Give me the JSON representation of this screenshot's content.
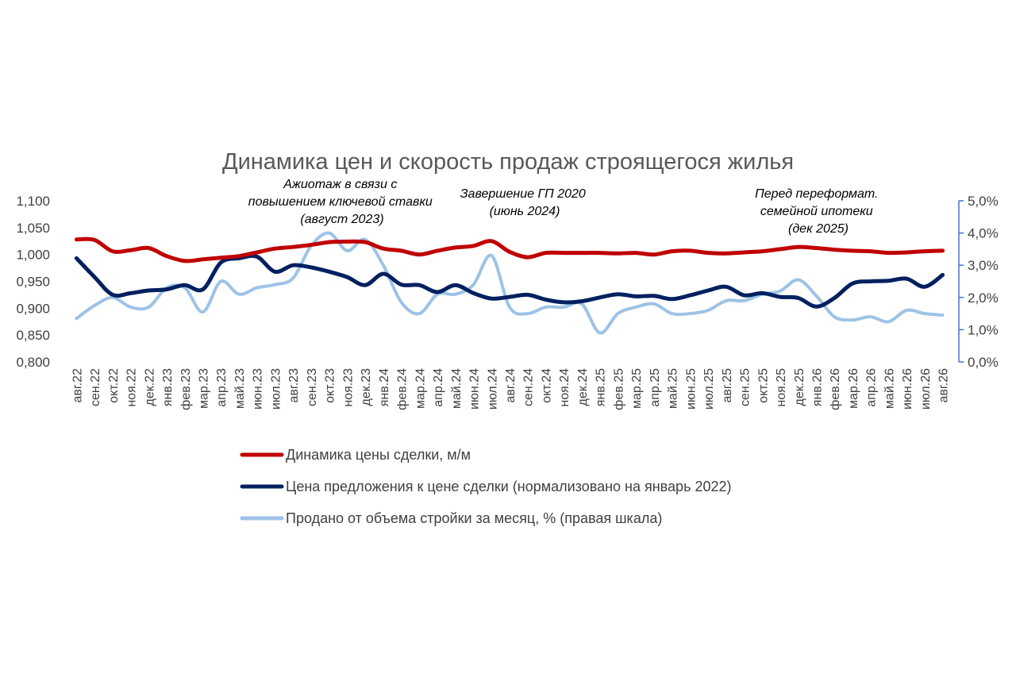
{
  "chart_data": {
    "type": "line",
    "title": "Динамика цен и скорость продаж строящегося жилья",
    "categories": [
      "авг.22",
      "сен.22",
      "окт.22",
      "ноя.22",
      "дек.22",
      "янв.23",
      "фев.23",
      "мар.23",
      "апр.23",
      "май.23",
      "июн.23",
      "июл.23",
      "авг.23",
      "сен.23",
      "окт.23",
      "ноя.23",
      "дек.23",
      "янв.24",
      "фев.24",
      "мар.24",
      "апр.24",
      "май.24",
      "июн.24",
      "июл.24",
      "авг.24",
      "сен.24",
      "окт.24",
      "ноя.24",
      "дек.24",
      "янв.25",
      "фев.25",
      "мар.25",
      "апр.25",
      "май.25",
      "июн.25",
      "июл.25",
      "авг.25",
      "сен.25",
      "окт.25",
      "ноя.25",
      "дек.25",
      "янв.26",
      "фев.26",
      "мар.26",
      "апр.26",
      "май.26",
      "июн.26",
      "июл.26",
      "авг.26"
    ],
    "y_left": {
      "ylim": [
        0.8,
        1.1
      ],
      "ticks": [
        "0,800",
        "0,850",
        "0,900",
        "0,950",
        "1,000",
        "1,050",
        "1,100"
      ]
    },
    "y_right": {
      "ylim": [
        0.0,
        5.0
      ],
      "ticks": [
        "0,0%",
        "1,0%",
        "2,0%",
        "3,0%",
        "4,0%",
        "5,0%"
      ],
      "axis_color": "#4472c4"
    },
    "series": [
      {
        "name": "Динамика цены сделки, м/м",
        "axis": "left",
        "color": "#c00000",
        "values": [
          1.028,
          1.027,
          1.006,
          1.008,
          1.012,
          0.997,
          0.988,
          0.991,
          0.994,
          0.997,
          1.004,
          1.011,
          1.014,
          1.018,
          1.023,
          1.024,
          1.023,
          1.011,
          1.007,
          1.0,
          1.007,
          1.013,
          1.016,
          1.025,
          1.005,
          0.995,
          1.003,
          1.003,
          1.003,
          1.003,
          1.002,
          1.003,
          1.0,
          1.006,
          1.007,
          1.003,
          1.002,
          1.004,
          1.006,
          1.01,
          1.014,
          1.012,
          1.009,
          1.007,
          1.006,
          1.003,
          1.004,
          1.006,
          1.007
        ]
      },
      {
        "name": "Цена предложения к цене сделки (нормализовано на январь 2022)",
        "axis": "left",
        "color": "#002060",
        "values": [
          0.993,
          0.958,
          0.925,
          0.928,
          0.933,
          0.935,
          0.943,
          0.935,
          0.985,
          0.993,
          0.996,
          0.968,
          0.98,
          0.976,
          0.968,
          0.958,
          0.943,
          0.964,
          0.944,
          0.943,
          0.93,
          0.943,
          0.928,
          0.918,
          0.921,
          0.925,
          0.916,
          0.911,
          0.913,
          0.92,
          0.926,
          0.922,
          0.923,
          0.917,
          0.924,
          0.933,
          0.94,
          0.924,
          0.928,
          0.921,
          0.919,
          0.903,
          0.919,
          0.946,
          0.95,
          0.951,
          0.955,
          0.94,
          0.962
        ]
      },
      {
        "name": "Продано от объема стройки за месяц, % (правая шкала)",
        "axis": "right",
        "color": "#9dc3e6",
        "values": [
          1.35,
          1.75,
          2.0,
          1.7,
          1.7,
          2.3,
          2.3,
          1.55,
          2.5,
          2.1,
          2.3,
          2.4,
          2.6,
          3.6,
          4.0,
          3.45,
          3.8,
          3.0,
          1.85,
          1.5,
          2.1,
          2.1,
          2.4,
          3.3,
          1.7,
          1.5,
          1.7,
          1.7,
          1.8,
          0.9,
          1.5,
          1.7,
          1.8,
          1.5,
          1.5,
          1.6,
          1.9,
          1.9,
          2.1,
          2.2,
          2.55,
          2.05,
          1.4,
          1.3,
          1.4,
          1.25,
          1.6,
          1.5,
          1.45
        ]
      }
    ],
    "annotations": [
      {
        "lines": [
          "Ажиотаж в связи с",
          "повышением ключевой ставки",
          "(август 2023)"
        ]
      },
      {
        "lines": [
          "Завершение ГП 2020",
          "(июнь 2024)"
        ]
      },
      {
        "lines": [
          "Перед переформат.",
          "семейной ипотеки",
          "(дек 2025)"
        ]
      }
    ],
    "legend_position": "bottom",
    "grid": false
  }
}
